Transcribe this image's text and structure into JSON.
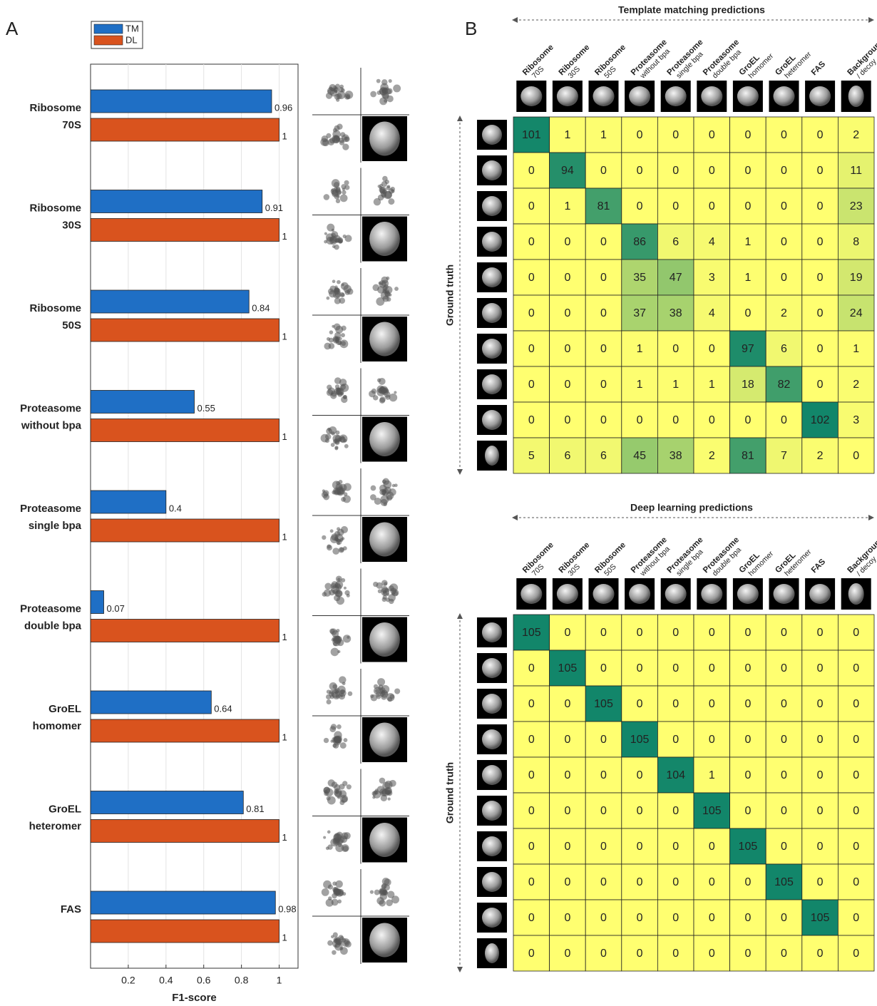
{
  "chart_data": [
    {
      "type": "barh",
      "panel_label": "A",
      "categories": [
        [
          "Ribosome",
          "70S"
        ],
        [
          "Ribosome",
          "30S"
        ],
        [
          "Ribosome",
          "50S"
        ],
        [
          "Proteasome",
          "without bpa"
        ],
        [
          "Proteasome",
          "single bpa"
        ],
        [
          "Proteasome",
          "double bpa"
        ],
        [
          "GroEL",
          "homomer"
        ],
        [
          "GroEL",
          "heteromer"
        ],
        [
          "FAS"
        ]
      ],
      "series": [
        {
          "name": "TM",
          "color": "#1f6fc5",
          "values": [
            0.96,
            0.91,
            0.84,
            0.55,
            0.4,
            0.07,
            0.64,
            0.81,
            0.98
          ]
        },
        {
          "name": "DL",
          "color": "#d9531e",
          "values": [
            1,
            1,
            1,
            1,
            1,
            1,
            1,
            1,
            1
          ]
        }
      ],
      "xlabel": "F1-score",
      "xlim": [
        0,
        1.1
      ],
      "xticks": [
        0.2,
        0.4,
        0.6,
        0.8,
        1
      ],
      "grid": true,
      "legend": "top-left"
    },
    {
      "type": "heatmap",
      "panel_label": "B",
      "title": "Template matching predictions",
      "ylabel": "Ground truth",
      "columns": [
        [
          "Ribosome",
          "70S"
        ],
        [
          "Ribosome",
          "30S"
        ],
        [
          "Ribosome",
          "50S"
        ],
        [
          "Proteasome",
          "without bpa"
        ],
        [
          "Proteasome",
          "single bpa"
        ],
        [
          "Proteasome",
          "double bpa"
        ],
        [
          "GroEL",
          "homomer"
        ],
        [
          "GroEL",
          "heteromer"
        ],
        [
          "FAS"
        ],
        [
          "Background",
          "/ decoy"
        ]
      ],
      "values": [
        [
          101,
          1,
          1,
          0,
          0,
          0,
          0,
          0,
          0,
          2
        ],
        [
          0,
          94,
          0,
          0,
          0,
          0,
          0,
          0,
          0,
          11
        ],
        [
          0,
          1,
          81,
          0,
          0,
          0,
          0,
          0,
          0,
          23
        ],
        [
          0,
          0,
          0,
          86,
          6,
          4,
          1,
          0,
          0,
          8
        ],
        [
          0,
          0,
          0,
          35,
          47,
          3,
          1,
          0,
          0,
          19
        ],
        [
          0,
          0,
          0,
          37,
          38,
          4,
          0,
          2,
          0,
          24
        ],
        [
          0,
          0,
          0,
          1,
          0,
          0,
          97,
          6,
          0,
          1
        ],
        [
          0,
          0,
          0,
          1,
          1,
          1,
          18,
          82,
          0,
          2
        ],
        [
          0,
          0,
          0,
          0,
          0,
          0,
          0,
          0,
          102,
          3
        ],
        [
          5,
          6,
          6,
          45,
          38,
          2,
          81,
          7,
          2,
          0
        ]
      ],
      "colors": [
        "#ffff70",
        "#12866a"
      ]
    },
    {
      "type": "heatmap",
      "title": "Deep learning predictions",
      "ylabel": "Ground truth",
      "columns": [
        [
          "Ribosome",
          "70S"
        ],
        [
          "Ribosome",
          "30S"
        ],
        [
          "Ribosome",
          "50S"
        ],
        [
          "Proteasome",
          "without bpa"
        ],
        [
          "Proteasome",
          "single bpa"
        ],
        [
          "Proteasome",
          "double bpa"
        ],
        [
          "GroEL",
          "homomer"
        ],
        [
          "GroEL",
          "heteromer"
        ],
        [
          "FAS"
        ],
        [
          "Background",
          "/ decoy"
        ]
      ],
      "values": [
        [
          105,
          0,
          0,
          0,
          0,
          0,
          0,
          0,
          0,
          0
        ],
        [
          0,
          105,
          0,
          0,
          0,
          0,
          0,
          0,
          0,
          0
        ],
        [
          0,
          0,
          105,
          0,
          0,
          0,
          0,
          0,
          0,
          0
        ],
        [
          0,
          0,
          0,
          105,
          0,
          0,
          0,
          0,
          0,
          0
        ],
        [
          0,
          0,
          0,
          0,
          104,
          1,
          0,
          0,
          0,
          0
        ],
        [
          0,
          0,
          0,
          0,
          0,
          105,
          0,
          0,
          0,
          0
        ],
        [
          0,
          0,
          0,
          0,
          0,
          0,
          105,
          0,
          0,
          0
        ],
        [
          0,
          0,
          0,
          0,
          0,
          0,
          0,
          105,
          0,
          0
        ],
        [
          0,
          0,
          0,
          0,
          0,
          0,
          0,
          0,
          105,
          0
        ],
        [
          0,
          0,
          0,
          0,
          0,
          0,
          0,
          0,
          0,
          0
        ]
      ],
      "colors": [
        "#ffff70",
        "#12866a"
      ]
    }
  ]
}
